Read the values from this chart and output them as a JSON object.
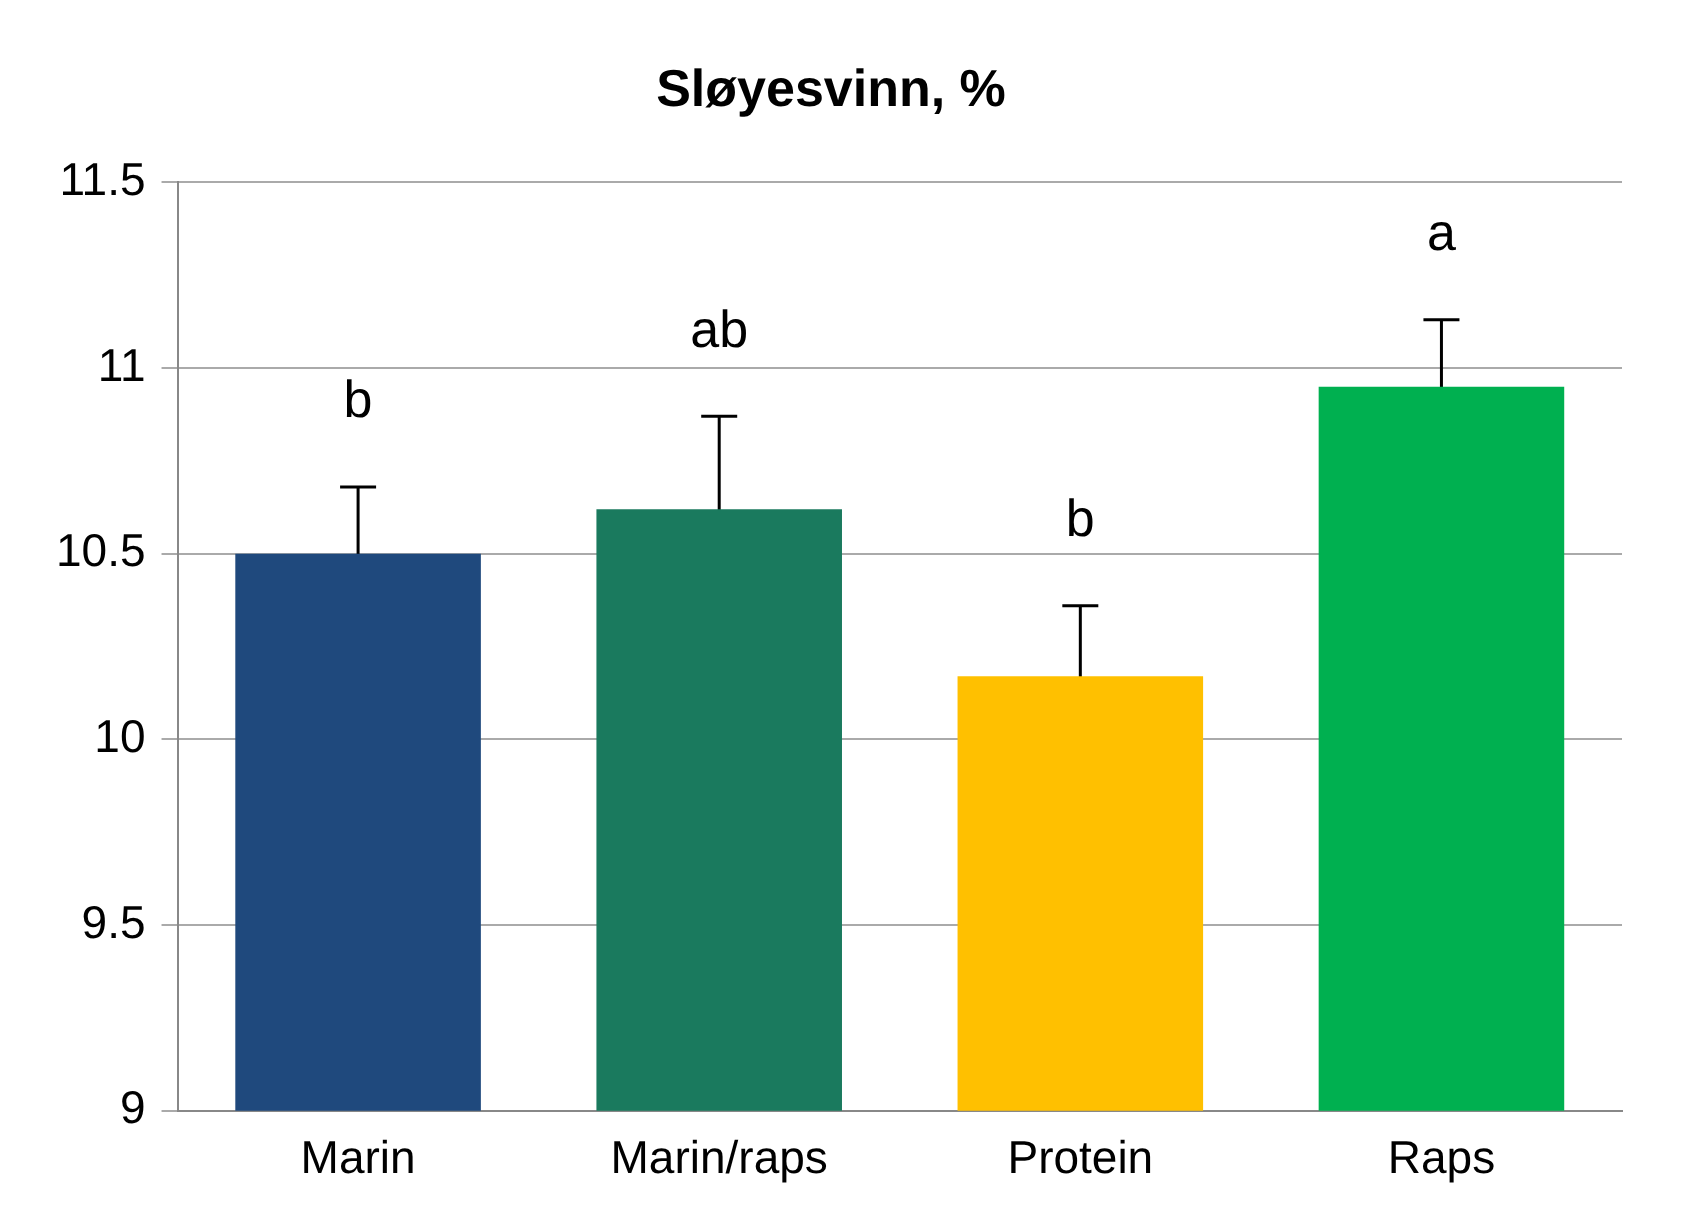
{
  "chart_data": {
    "type": "bar",
    "title": "Sløyesvinn, %",
    "categories": [
      "Marin",
      "Marin/raps",
      "Protein",
      "Raps"
    ],
    "values": [
      10.5,
      10.62,
      10.17,
      10.95
    ],
    "colors": [
      "#1f497d",
      "#1a7a5e",
      "#ffc000",
      "#00b050"
    ],
    "errors": [
      0.18,
      0.25,
      0.19,
      0.18
    ],
    "ylim": [
      9,
      11.5
    ],
    "yticks": [
      9,
      9.5,
      10,
      10.5,
      11,
      11.5
    ],
    "grid": "y",
    "legend": false,
    "annotations": [
      "b",
      "ab",
      "b",
      "a"
    ]
  }
}
